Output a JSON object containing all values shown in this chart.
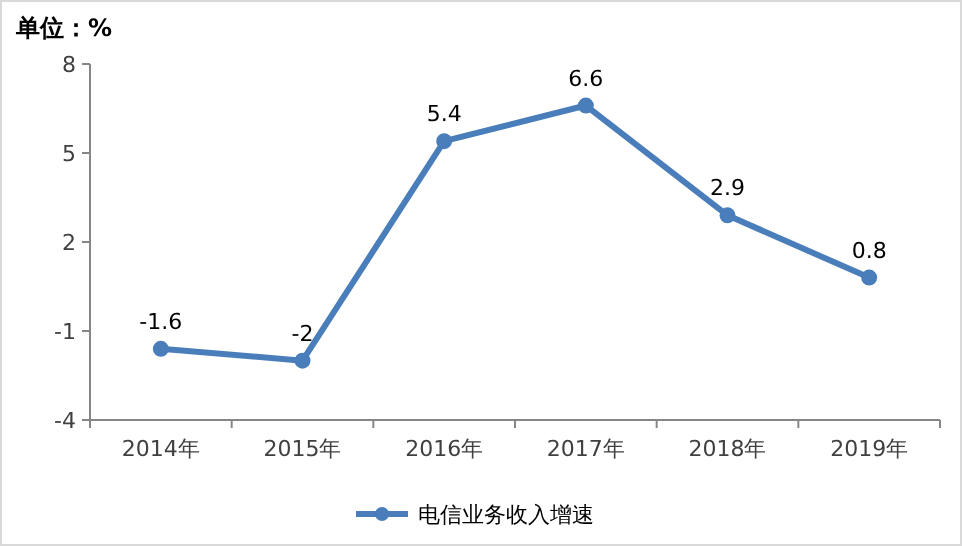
{
  "chart_data": {
    "type": "line",
    "ylabel": "单位：%",
    "categories": [
      "2014年",
      "2015年",
      "2016年",
      "2017年",
      "2018年",
      "2019年"
    ],
    "series": [
      {
        "name": "电信业务收入增速",
        "color": "#4a7ebb",
        "values": [
          -1.6,
          -2,
          5.4,
          6.6,
          2.9,
          0.8
        ]
      }
    ],
    "ylim": [
      -4,
      8
    ],
    "yticks": [
      -4,
      -1,
      2,
      5,
      8
    ],
    "data_labels": true,
    "legend": "bottom",
    "marker": "circle",
    "line_style": "solid"
  }
}
